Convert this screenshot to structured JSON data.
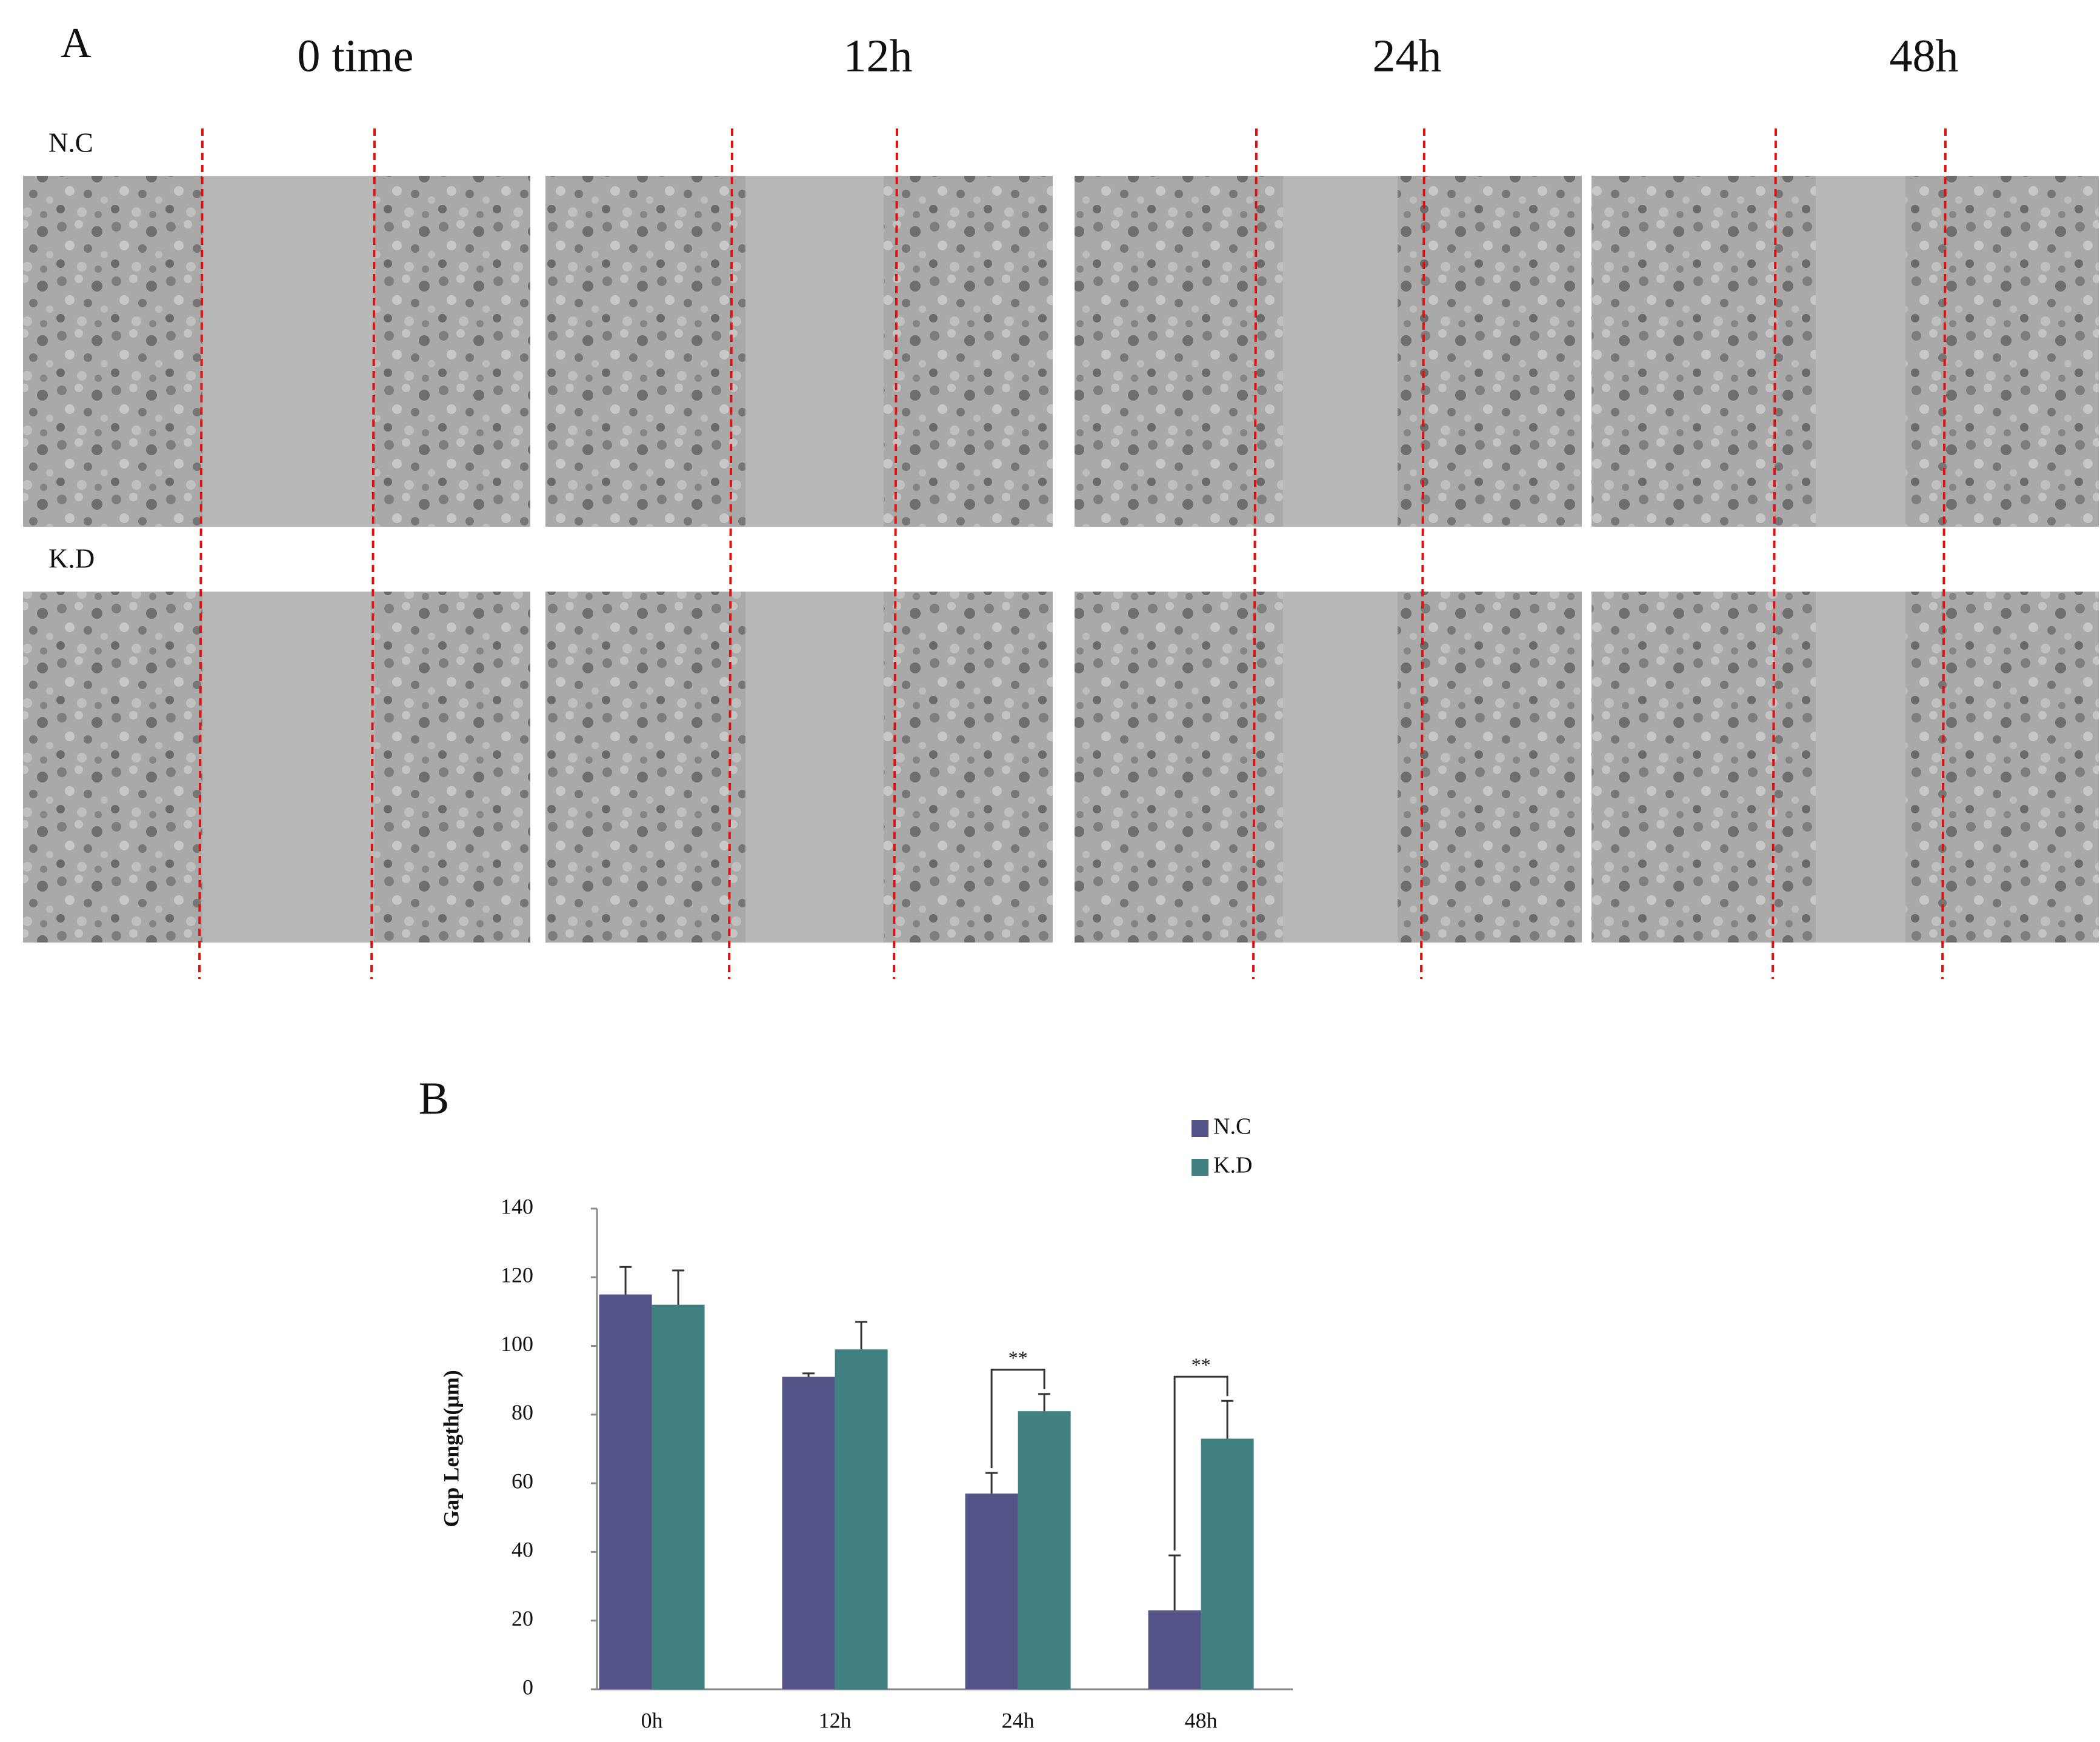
{
  "panel_a": {
    "label": "A",
    "columns": [
      "0 time",
      "12h",
      "24h",
      "48h"
    ],
    "rows": [
      "N.C",
      "K.D"
    ]
  },
  "chart_data": {
    "type": "bar",
    "panel_label": "B",
    "y_label": "Gap Length(μm)",
    "categories": [
      "0h",
      "12h",
      "24h",
      "48h"
    ],
    "series": [
      {
        "name": "N.C",
        "color": "#535387",
        "values": [
          115,
          91,
          57,
          23
        ],
        "errors": [
          8,
          1,
          6,
          16
        ]
      },
      {
        "name": "K.D",
        "color": "#408080",
        "values": [
          112,
          99,
          81,
          73
        ],
        "errors": [
          10,
          8,
          5,
          11
        ]
      }
    ],
    "significance": [
      null,
      null,
      "**",
      "**"
    ],
    "ylim": [
      0,
      140
    ],
    "yticks": [
      0,
      20,
      40,
      60,
      80,
      100,
      120,
      140
    ],
    "grid": false
  }
}
